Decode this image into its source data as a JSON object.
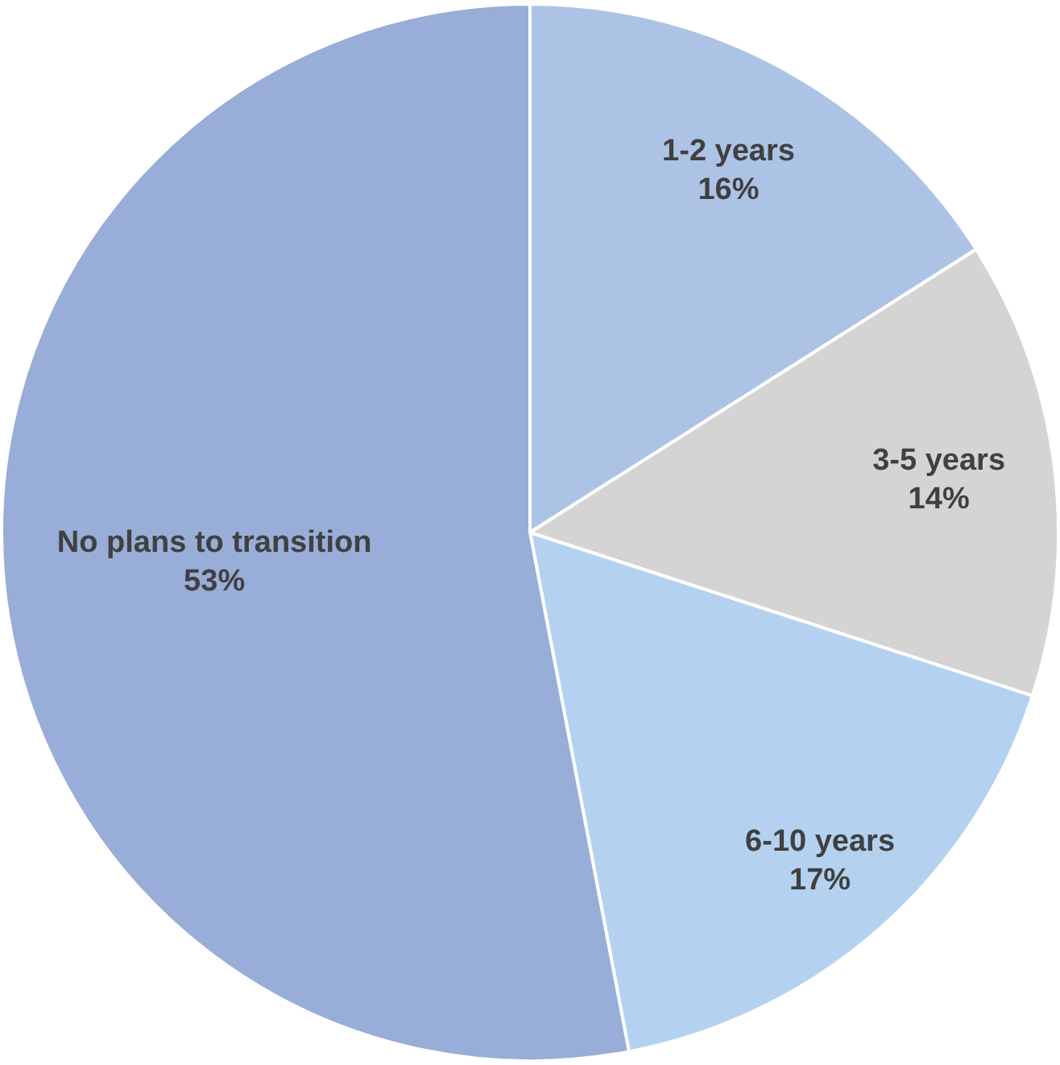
{
  "chart_data": {
    "type": "pie",
    "categories": [
      "1-2 years",
      "3-5 years",
      "6-10 years",
      "No plans to transition"
    ],
    "values": [
      16,
      14,
      17,
      53
    ],
    "colors": [
      "#adc3e6",
      "#d4d4d4",
      "#b4d2f0",
      "#98add7"
    ],
    "value_labels": [
      "16%",
      "14%",
      "17%",
      "53%"
    ],
    "legend": false
  }
}
